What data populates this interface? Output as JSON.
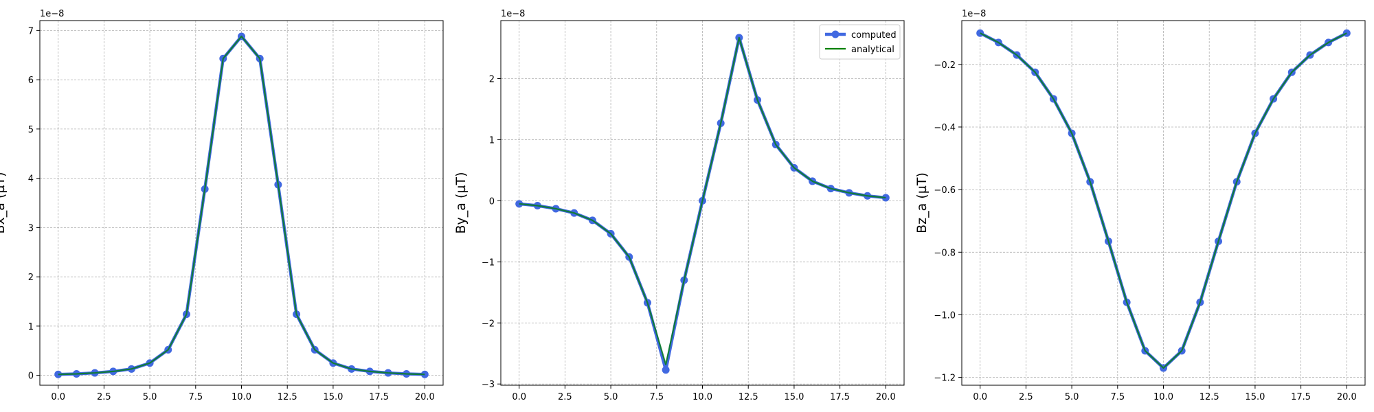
{
  "chart_data": [
    {
      "type": "line",
      "ylabel": "Bx_a (µT)",
      "offset_label": "1e−8",
      "xlim": [
        -1,
        21
      ],
      "ylim": [
        -0.2,
        7.2
      ],
      "xticks": [
        0,
        2.5,
        5,
        7.5,
        10,
        12.5,
        15,
        17.5,
        20
      ],
      "xtick_labels": [
        "0.0",
        "2.5",
        "5.0",
        "7.5",
        "10.0",
        "12.5",
        "15.0",
        "17.5",
        "20.0"
      ],
      "yticks": [
        0,
        1,
        2,
        3,
        4,
        5,
        6,
        7
      ],
      "ytick_labels": [
        "0",
        "1",
        "2",
        "3",
        "4",
        "5",
        "6",
        "7"
      ],
      "grid": true,
      "x": [
        0,
        1,
        2,
        3,
        4,
        5,
        6,
        7,
        8,
        9,
        10,
        11,
        12,
        13,
        14,
        15,
        16,
        17,
        18,
        19,
        20
      ],
      "series": [
        {
          "name": "computed",
          "color": "#4169e1",
          "values": [
            0.02,
            0.03,
            0.05,
            0.08,
            0.13,
            0.25,
            0.52,
            1.24,
            3.78,
            6.43,
            6.88,
            6.43,
            3.87,
            1.24,
            0.52,
            0.25,
            0.13,
            0.08,
            0.05,
            0.03,
            0.02
          ]
        },
        {
          "name": "analytical",
          "color": "#008000",
          "values": [
            0.02,
            0.03,
            0.05,
            0.08,
            0.13,
            0.25,
            0.52,
            1.24,
            3.78,
            6.43,
            6.88,
            6.43,
            3.87,
            1.24,
            0.52,
            0.25,
            0.13,
            0.08,
            0.05,
            0.03,
            0.02
          ]
        }
      ]
    },
    {
      "type": "line",
      "ylabel": "By_a (µT)",
      "offset_label": "1e−8",
      "xlim": [
        -1,
        21
      ],
      "ylim": [
        -3.02,
        2.95
      ],
      "xticks": [
        0,
        2.5,
        5,
        7.5,
        10,
        12.5,
        15,
        17.5,
        20
      ],
      "xtick_labels": [
        "0.0",
        "2.5",
        "5.0",
        "7.5",
        "10.0",
        "12.5",
        "15.0",
        "17.5",
        "20.0"
      ],
      "yticks": [
        -3,
        -2,
        -1,
        0,
        1,
        2
      ],
      "ytick_labels": [
        "−3",
        "−2",
        "−1",
        "0",
        "1",
        "2"
      ],
      "grid": true,
      "legend": true,
      "legend_position": "top-right",
      "x": [
        0,
        1,
        2,
        3,
        4,
        5,
        6,
        7,
        8,
        9,
        10,
        11,
        12,
        13,
        14,
        15,
        16,
        17,
        18,
        19,
        20
      ],
      "series": [
        {
          "name": "computed",
          "color": "#4169e1",
          "values": [
            -0.05,
            -0.08,
            -0.13,
            -0.2,
            -0.32,
            -0.54,
            -0.92,
            -1.67,
            -2.77,
            -1.3,
            0.0,
            1.27,
            2.67,
            1.65,
            0.92,
            0.54,
            0.32,
            0.2,
            0.13,
            0.08,
            0.05
          ]
        },
        {
          "name": "analytical",
          "color": "#008000",
          "values": [
            -0.05,
            -0.08,
            -0.13,
            -0.2,
            -0.32,
            -0.54,
            -0.92,
            -1.67,
            -2.68,
            -1.3,
            0.0,
            1.27,
            2.67,
            1.65,
            0.92,
            0.54,
            0.32,
            0.2,
            0.13,
            0.08,
            0.05
          ]
        }
      ]
    },
    {
      "type": "line",
      "ylabel": "Bz_a (µT)",
      "offset_label": "1e−8",
      "xlim": [
        -1,
        21
      ],
      "ylim": [
        -1.225,
        -0.06
      ],
      "xticks": [
        0,
        2.5,
        5,
        7.5,
        10,
        12.5,
        15,
        17.5,
        20
      ],
      "xtick_labels": [
        "0.0",
        "2.5",
        "5.0",
        "7.5",
        "10.0",
        "12.5",
        "15.0",
        "17.5",
        "20.0"
      ],
      "yticks": [
        -1.2,
        -1.0,
        -0.8,
        -0.6,
        -0.4,
        -0.2
      ],
      "ytick_labels": [
        "−1.2",
        "−1.0",
        "−0.8",
        "−0.6",
        "−0.4",
        "−0.2"
      ],
      "grid": true,
      "x": [
        0,
        1,
        2,
        3,
        4,
        5,
        6,
        7,
        8,
        9,
        10,
        11,
        12,
        13,
        14,
        15,
        16,
        17,
        18,
        19,
        20
      ],
      "series": [
        {
          "name": "computed",
          "color": "#4169e1",
          "values": [
            -0.1,
            -0.13,
            -0.17,
            -0.225,
            -0.31,
            -0.42,
            -0.575,
            -0.765,
            -0.96,
            -1.115,
            -1.17,
            -1.115,
            -0.96,
            -0.765,
            -0.575,
            -0.42,
            -0.31,
            -0.225,
            -0.17,
            -0.13,
            -0.1
          ]
        },
        {
          "name": "analytical",
          "color": "#008000",
          "values": [
            -0.1,
            -0.13,
            -0.17,
            -0.225,
            -0.31,
            -0.42,
            -0.575,
            -0.765,
            -0.96,
            -1.115,
            -1.17,
            -1.115,
            -0.96,
            -0.765,
            -0.575,
            -0.42,
            -0.31,
            -0.225,
            -0.17,
            -0.13,
            -0.1
          ]
        }
      ]
    }
  ]
}
